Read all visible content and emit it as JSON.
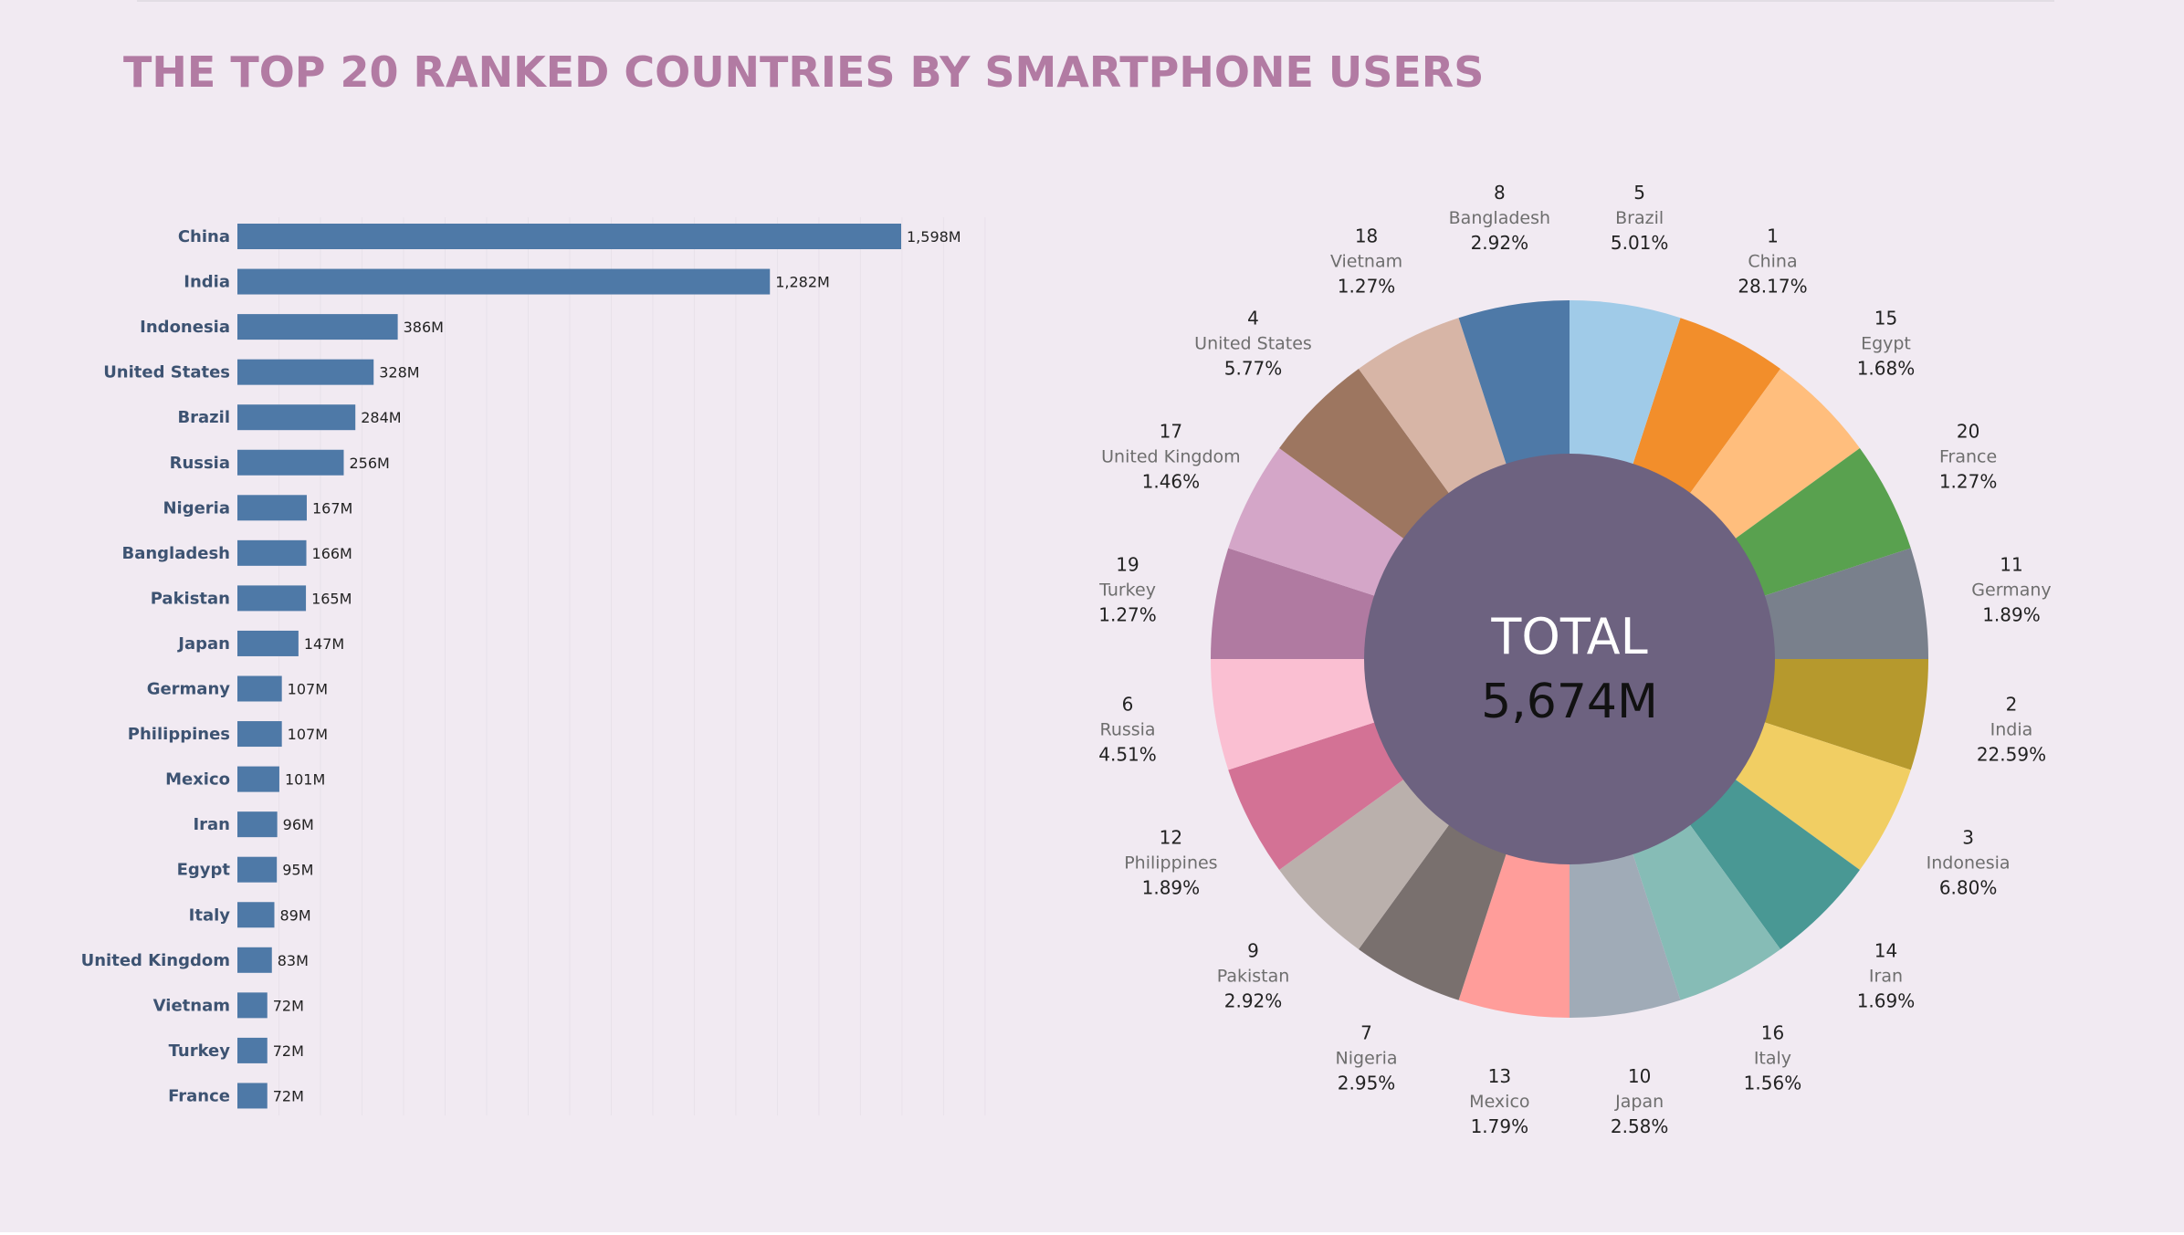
{
  "title": "THE TOP 20 RANKED COUNTRIES BY SMARTPHONE USERS",
  "chart_data": [
    {
      "type": "bar",
      "orientation": "horizontal",
      "categories": [
        "China",
        "India",
        "Indonesia",
        "United States",
        "Brazil",
        "Russia",
        "Nigeria",
        "Bangladesh",
        "Pakistan",
        "Japan",
        "Germany",
        "Philippines",
        "Mexico",
        "Iran",
        "Egypt",
        "Italy",
        "United Kingdom",
        "Vietnam",
        "Turkey",
        "France"
      ],
      "values": [
        1598,
        1282,
        386,
        328,
        284,
        256,
        167,
        166,
        165,
        147,
        107,
        107,
        101,
        96,
        95,
        89,
        83,
        72,
        72,
        72
      ],
      "value_labels": [
        "1,598M",
        "1,282M",
        "386M",
        "328M",
        "284M",
        "256M",
        "167M",
        "166M",
        "165M",
        "147M",
        "107M",
        "107M",
        "101M",
        "96M",
        "95M",
        "89M",
        "83M",
        "72M",
        "72M",
        "72M"
      ],
      "unit": "M",
      "xlim": [
        0,
        1800
      ],
      "grid": true,
      "bar_color": "#4e79a7"
    },
    {
      "type": "pie",
      "donut": true,
      "center_label": "TOTAL",
      "center_value": "5,674M",
      "center_color": "#6d6280",
      "slices": [
        {
          "rank": "1",
          "name": "China",
          "pct_label": "28.17%",
          "color": "#f28e2b"
        },
        {
          "rank": "15",
          "name": "Egypt",
          "pct_label": "1.68%",
          "color": "#ffbe7d"
        },
        {
          "rank": "20",
          "name": "France",
          "pct_label": "1.27%",
          "color": "#59a14f"
        },
        {
          "rank": "11",
          "name": "Germany",
          "pct_label": "1.89%",
          "color": "#79808c"
        },
        {
          "rank": "2",
          "name": "India",
          "pct_label": "22.59%",
          "color": "#b6992d"
        },
        {
          "rank": "3",
          "name": "Indonesia",
          "pct_label": "6.80%",
          "color": "#f1ce63"
        },
        {
          "rank": "14",
          "name": "Iran",
          "pct_label": "1.69%",
          "color": "#499894"
        },
        {
          "rank": "16",
          "name": "Italy",
          "pct_label": "1.56%",
          "color": "#86bcb6"
        },
        {
          "rank": "10",
          "name": "Japan",
          "pct_label": "2.58%",
          "color": "#a0abb7"
        },
        {
          "rank": "13",
          "name": "Mexico",
          "pct_label": "1.79%",
          "color": "#ff9d9a"
        },
        {
          "rank": "7",
          "name": "Nigeria",
          "pct_label": "2.95%",
          "color": "#79706e"
        },
        {
          "rank": "9",
          "name": "Pakistan",
          "pct_label": "2.92%",
          "color": "#bab0ac"
        },
        {
          "rank": "12",
          "name": "Philippines",
          "pct_label": "1.89%",
          "color": "#d37295"
        },
        {
          "rank": "6",
          "name": "Russia",
          "pct_label": "4.51%",
          "color": "#fabfd2"
        },
        {
          "rank": "19",
          "name": "Turkey",
          "pct_label": "1.27%",
          "color": "#b07aa1"
        },
        {
          "rank": "17",
          "name": "United Kingdom",
          "pct_label": "1.46%",
          "color": "#d4a6c8"
        },
        {
          "rank": "4",
          "name": "United States",
          "pct_label": "5.77%",
          "color": "#9d7660"
        },
        {
          "rank": "18",
          "name": "Vietnam",
          "pct_label": "1.27%",
          "color": "#d7b5a6"
        },
        {
          "rank": "8",
          "name": "Bangladesh",
          "pct_label": "2.92%",
          "color": "#4e79a7"
        },
        {
          "rank": "5",
          "name": "Brazil",
          "pct_label": "5.01%",
          "color": "#a0cbe8"
        }
      ]
    }
  ]
}
